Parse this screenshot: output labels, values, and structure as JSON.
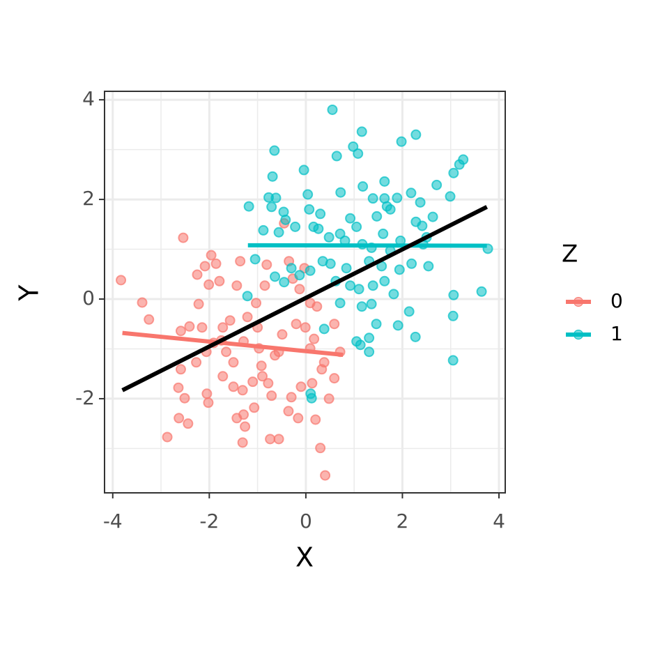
{
  "chart_data": {
    "type": "scatter",
    "x_label": "X",
    "y_label": "Y",
    "legend_title": "Z",
    "legend_position": "right",
    "xlim": [
      -4.17,
      4.13
    ],
    "ylim": [
      -3.89,
      4.17
    ],
    "xticks": [
      -4,
      -2,
      0,
      2,
      4
    ],
    "yticks": [
      -2,
      0,
      2,
      4
    ],
    "xminor": [
      -3,
      -1,
      1,
      3
    ],
    "yminor": [
      -3,
      -1,
      1,
      3
    ],
    "grid": true,
    "overall_fit": {
      "color": "#000000",
      "x": [
        -3.8,
        3.75
      ],
      "y": [
        -1.83,
        1.85
      ]
    },
    "series": [
      {
        "name": "0",
        "color": "#F8766D",
        "fit": {
          "x": [
            -3.8,
            0.77
          ],
          "y": [
            -0.68,
            -1.12
          ]
        },
        "x": [
          -3.83,
          -3.39,
          -3.25,
          -2.54,
          -2.87,
          -2.63,
          -2.44,
          -2.51,
          -2.64,
          -2.59,
          -2.41,
          -2.59,
          -2.25,
          -2.09,
          -1.96,
          -1.86,
          -2.01,
          -1.79,
          -2.22,
          -2.05,
          -2.02,
          -2.27,
          -1.72,
          -1.65,
          -1.5,
          -1.36,
          -1.43,
          -1.31,
          -1.43,
          -1.26,
          -1.31,
          -1.1,
          -0.92,
          -1.21,
          -1.0,
          -0.81,
          -0.85,
          -1.03,
          -0.71,
          -0.74,
          -0.56,
          -0.64,
          -0.49,
          -0.35,
          -0.27,
          -0.13,
          -0.03,
          -0.2,
          -0.01,
          0.09,
          -0.1,
          0.13,
          -0.3,
          -0.36,
          -0.16,
          0.2,
          0.3,
          0.4,
          0.48,
          0.59,
          0.38,
          0.33,
          0.71,
          0.59,
          0.17,
          -0.45,
          -0.56,
          -0.78,
          -0.97,
          -1.29,
          -1.57,
          -1.75,
          -1.91,
          -2.06,
          -2.15,
          -1.29,
          -1.07,
          -0.9,
          -1.5,
          -1.72,
          0.09,
          0.23
        ],
        "values": [
          0.38,
          -0.07,
          -0.41,
          1.23,
          -2.77,
          -2.39,
          -2.5,
          -1.99,
          -1.78,
          -1.41,
          -0.55,
          -0.64,
          0.49,
          0.66,
          0.88,
          0.71,
          0.29,
          0.36,
          -0.1,
          -1.9,
          -2.08,
          -1.27,
          -0.57,
          -1.06,
          -1.27,
          0.76,
          0.27,
          -1.83,
          -2.39,
          -2.56,
          -2.88,
          -1.66,
          -1.34,
          -0.36,
          -0.57,
          0.69,
          0.27,
          -0.08,
          -1.94,
          -2.81,
          -2.81,
          -1.13,
          -0.71,
          0.76,
          0.41,
          0.2,
          0.62,
          -0.5,
          -0.57,
          -0.99,
          -1.76,
          -1.69,
          -1.97,
          -2.25,
          -2.39,
          -2.42,
          -2.99,
          -3.54,
          -2.0,
          -0.5,
          -1.27,
          -1.41,
          -1.06,
          -1.59,
          -0.8,
          1.52,
          -1.06,
          -1.69,
          -0.99,
          -0.85,
          -0.43,
          -0.83,
          -0.88,
          -1.06,
          -0.57,
          -2.32,
          -2.18,
          -1.55,
          -1.76,
          -1.55,
          -0.08,
          -0.15
        ]
      },
      {
        "name": "1",
        "color": "#00BFC4",
        "fit": {
          "x": [
            -1.2,
            3.75
          ],
          "y": [
            1.08,
            1.07
          ]
        },
        "x": [
          0.55,
          1.16,
          2.28,
          1.98,
          0.98,
          1.08,
          0.64,
          -0.65,
          3.26,
          3.18,
          3.06,
          -0.04,
          -0.69,
          1.63,
          2.71,
          1.18,
          0.72,
          0.04,
          -0.77,
          -0.62,
          2.18,
          2.99,
          1.89,
          1.63,
          1.39,
          1.68,
          2.37,
          -1.18,
          -0.71,
          0.07,
          0.3,
          0.92,
          1.47,
          1.75,
          2.63,
          2.28,
          2.41,
          -0.46,
          -0.42,
          -0.22,
          -0.88,
          -0.56,
          0.16,
          0.26,
          0.48,
          0.71,
          1.05,
          0.81,
          1.17,
          1.6,
          1.36,
          1.75,
          1.96,
          2.43,
          2.5,
          3.77,
          0.35,
          0.51,
          0.84,
          1.31,
          1.57,
          1.94,
          2.19,
          2.54,
          0.09,
          -0.13,
          -0.3,
          -0.64,
          -0.45,
          0.62,
          0.92,
          1.39,
          1.63,
          1.1,
          3.64,
          3.06,
          1.82,
          0.71,
          1.16,
          1.36,
          2.14,
          3.05,
          1.46,
          1.91,
          0.38,
          1.31,
          1.05,
          1.13,
          1.31,
          2.27,
          3.05,
          0.12,
          -1.21,
          -1.05,
          0.1
        ],
        "values": [
          3.8,
          3.36,
          3.3,
          3.16,
          3.06,
          2.92,
          2.87,
          2.98,
          2.8,
          2.7,
          2.53,
          2.59,
          2.46,
          2.36,
          2.29,
          2.26,
          2.14,
          2.1,
          2.04,
          2.03,
          2.13,
          2.06,
          2.03,
          2.02,
          2.02,
          1.86,
          1.94,
          1.86,
          1.85,
          1.8,
          1.71,
          1.62,
          1.66,
          1.8,
          1.65,
          1.55,
          1.47,
          1.75,
          1.59,
          1.45,
          1.38,
          1.34,
          1.45,
          1.41,
          1.24,
          1.31,
          1.45,
          1.17,
          1.1,
          1.31,
          1.03,
          0.97,
          1.17,
          1.1,
          1.24,
          1.01,
          0.76,
          0.71,
          0.62,
          0.76,
          0.66,
          0.59,
          0.71,
          0.66,
          0.57,
          0.48,
          0.62,
          0.45,
          0.34,
          0.36,
          0.27,
          0.27,
          0.36,
          0.2,
          0.15,
          0.08,
          0.1,
          -0.08,
          -0.15,
          -0.1,
          -0.25,
          -0.34,
          -0.5,
          -0.53,
          -0.6,
          -0.78,
          -0.85,
          -0.92,
          -1.06,
          -0.76,
          -1.23,
          -1.99,
          0.06,
          0.8,
          -1.9
        ]
      }
    ]
  }
}
